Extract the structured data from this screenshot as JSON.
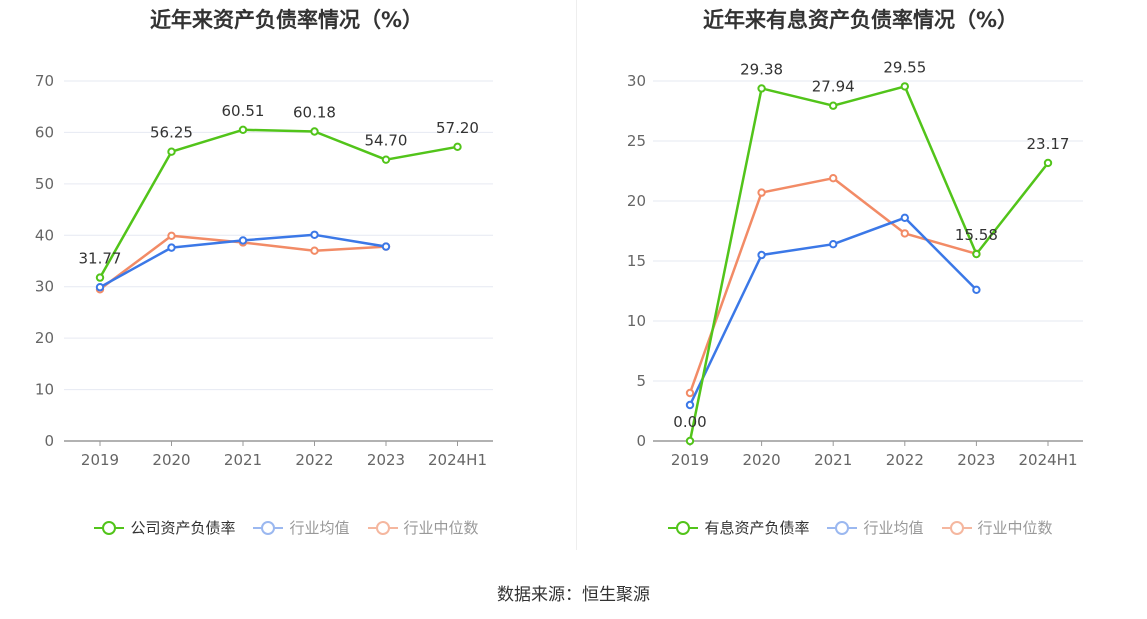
{
  "source_text": "数据来源：恒生聚源",
  "chart_data": [
    {
      "type": "line",
      "title": "近年来资产负债率情况（%）",
      "categories": [
        "2019",
        "2020",
        "2021",
        "2022",
        "2023",
        "2024H1"
      ],
      "ylim": [
        0,
        70
      ],
      "yticks": [
        0,
        10,
        20,
        30,
        40,
        50,
        60,
        70
      ],
      "grid": true,
      "legend_position": "bottom",
      "series": [
        {
          "name": "公司资产负债率",
          "color": "#52c41a",
          "values": [
            31.77,
            56.25,
            60.51,
            60.18,
            54.7,
            57.2
          ],
          "labels": [
            "31.77",
            "56.25",
            "60.51",
            "60.18",
            "54.70",
            "57.20"
          ]
        },
        {
          "name": "行业均值",
          "color": "#3b78e7",
          "values": [
            29.9,
            37.6,
            39.0,
            40.1,
            37.8,
            null
          ]
        },
        {
          "name": "行业中位数",
          "color": "#f28b66",
          "values": [
            29.5,
            39.9,
            38.6,
            37.0,
            37.8,
            null
          ]
        }
      ]
    },
    {
      "type": "line",
      "title": "近年来有息资产负债率情况（%）",
      "categories": [
        "2019",
        "2020",
        "2021",
        "2022",
        "2023",
        "2024H1"
      ],
      "ylim": [
        0,
        30
      ],
      "yticks": [
        0,
        5,
        10,
        15,
        20,
        25,
        30
      ],
      "grid": true,
      "legend_position": "bottom",
      "series": [
        {
          "name": "有息资产负债率",
          "color": "#52c41a",
          "values": [
            0.0,
            29.38,
            27.94,
            29.55,
            15.58,
            23.17
          ],
          "labels": [
            "0.00",
            "29.38",
            "27.94",
            "29.55",
            "15.58",
            "23.17"
          ]
        },
        {
          "name": "行业均值",
          "color": "#3b78e7",
          "values": [
            3.0,
            15.5,
            16.4,
            18.6,
            12.6,
            null
          ]
        },
        {
          "name": "行业中位数",
          "color": "#f28b66",
          "values": [
            4.0,
            20.7,
            21.9,
            17.3,
            15.6,
            null
          ]
        }
      ]
    }
  ]
}
